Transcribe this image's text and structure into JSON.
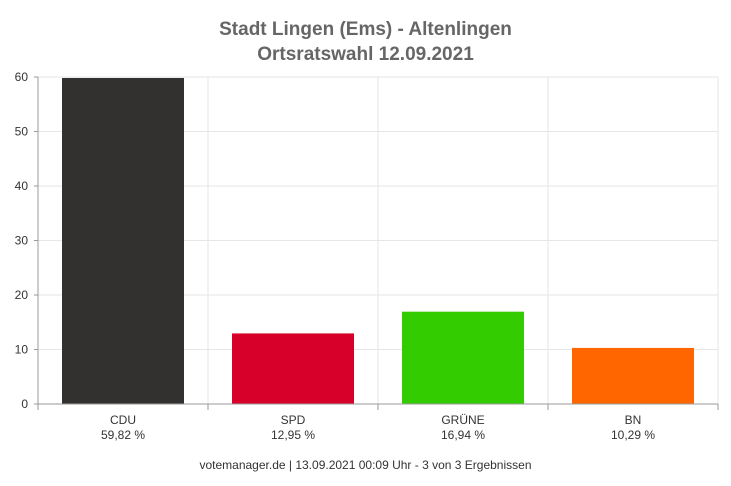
{
  "chart_data": {
    "type": "bar",
    "title": "Stadt Lingen (Ems) - Altenlingen",
    "subtitle": "Ortsratswahl 12.09.2021",
    "categories": [
      "CDU",
      "SPD",
      "GRÜNE",
      "BN"
    ],
    "values": [
      59.82,
      12.95,
      16.94,
      10.29
    ],
    "value_labels": [
      "59,82 %",
      "12,95 %",
      "16,94 %",
      "10,29 %"
    ],
    "colors": [
      "#333130",
      "#d7002a",
      "#33cc00",
      "#ff6600"
    ],
    "ylim": [
      0,
      60
    ],
    "yticks": [
      0,
      10,
      20,
      30,
      40,
      50,
      60
    ],
    "grid": true,
    "xlabel": "",
    "ylabel": ""
  },
  "footer": "votemanager.de | 13.09.2021 00:09 Uhr - 3 von 3 Ergebnissen"
}
